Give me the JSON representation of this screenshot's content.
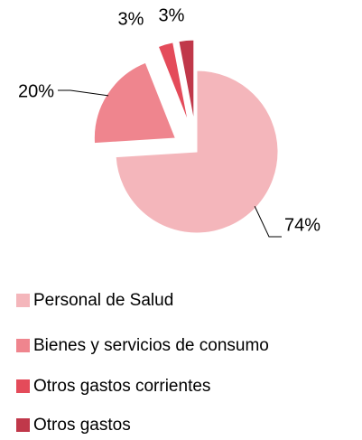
{
  "chart_data": {
    "type": "pie",
    "categories": [
      "Personal de Salud",
      "Bienes y servicios de consumo",
      "Otros gastos corrientes",
      "Otros gastos"
    ],
    "values": [
      74,
      20,
      3,
      3
    ],
    "value_labels": [
      "74%",
      "20%",
      "3%",
      "3%"
    ],
    "colors": [
      "#f4b6bb",
      "#ef858e",
      "#e44b5a",
      "#c0384a"
    ],
    "legend": "bottom"
  }
}
